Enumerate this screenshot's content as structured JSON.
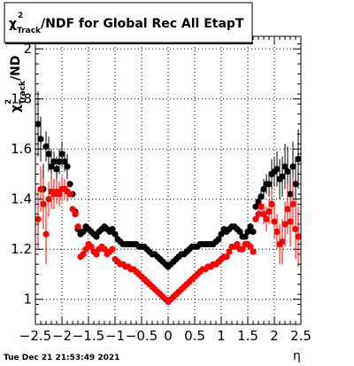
{
  "title": {
    "chi": "χ",
    "sup": "2",
    "sub": "Track",
    "rest": "/NDF for Global Rec All EtapT"
  },
  "ylabel": {
    "chi": "χ",
    "sup": "2",
    "sub": "Track",
    "rest": "/ND"
  },
  "xlabel": "η",
  "timestamp": "Tue Dec 21 21:53:49 2021",
  "chart_data": {
    "type": "scatter",
    "xlim": [
      -2.5,
      2.5
    ],
    "ylim": [
      0.9,
      2.05
    ],
    "xticks": [
      -2.5,
      -2,
      -1.5,
      -1,
      -0.5,
      0,
      0.5,
      1,
      1.5,
      2,
      2.5
    ],
    "xtick_labels": [
      "−2.5",
      "−2",
      "−1.5",
      "−1",
      "−0.5",
      "0",
      "0.5",
      "1",
      "1.5",
      "2",
      "2.5"
    ],
    "yticks": [
      1,
      1.2,
      1.4,
      1.6,
      1.8,
      2
    ],
    "ytick_labels": [
      "1",
      "1.2",
      "1.4",
      "1.6",
      "1.8",
      "2"
    ],
    "grid": true,
    "series": [
      {
        "color": "#000000",
        "x": [
          -2.45,
          -2.4,
          -2.35,
          -2.3,
          -2.25,
          -2.2,
          -2.15,
          -2.1,
          -2.05,
          -2.0,
          -1.95,
          -1.9,
          -1.85,
          -1.8,
          -1.75,
          -1.7,
          -1.65,
          -1.6,
          -1.55,
          -1.5,
          -1.45,
          -1.4,
          -1.35,
          -1.3,
          -1.25,
          -1.2,
          -1.15,
          -1.1,
          -1.05,
          -1.0,
          -0.95,
          -0.9,
          -0.85,
          -0.8,
          -0.75,
          -0.7,
          -0.65,
          -0.6,
          -0.55,
          -0.5,
          -0.45,
          -0.4,
          -0.35,
          -0.3,
          -0.25,
          -0.2,
          -0.15,
          -0.1,
          -0.05,
          0.0,
          0.05,
          0.1,
          0.15,
          0.2,
          0.25,
          0.3,
          0.35,
          0.4,
          0.45,
          0.5,
          0.55,
          0.6,
          0.65,
          0.7,
          0.75,
          0.8,
          0.85,
          0.9,
          0.95,
          1.0,
          1.05,
          1.1,
          1.15,
          1.2,
          1.25,
          1.3,
          1.35,
          1.4,
          1.45,
          1.5,
          1.55,
          1.6,
          1.65,
          1.7,
          1.75,
          1.8,
          1.85,
          1.9,
          1.95,
          2.0,
          2.05,
          2.1,
          2.15,
          2.2,
          2.25,
          2.3,
          2.35,
          2.4,
          2.45
        ],
        "y": [
          1.7,
          1.64,
          1.44,
          1.61,
          1.58,
          1.53,
          1.55,
          1.52,
          1.55,
          1.58,
          1.55,
          1.53,
          1.46,
          1.42,
          1.35,
          1.28,
          1.26,
          1.27,
          1.29,
          1.28,
          1.27,
          1.26,
          1.25,
          1.27,
          1.28,
          1.29,
          1.28,
          1.27,
          1.28,
          1.26,
          1.24,
          1.23,
          1.22,
          1.22,
          1.22,
          1.22,
          1.22,
          1.22,
          1.21,
          1.21,
          1.21,
          1.2,
          1.19,
          1.18,
          1.18,
          1.17,
          1.16,
          1.15,
          1.14,
          1.13,
          1.14,
          1.15,
          1.16,
          1.17,
          1.18,
          1.18,
          1.19,
          1.2,
          1.21,
          1.21,
          1.21,
          1.22,
          1.22,
          1.22,
          1.22,
          1.22,
          1.22,
          1.23,
          1.24,
          1.26,
          1.28,
          1.27,
          1.28,
          1.29,
          1.29,
          1.28,
          1.27,
          1.25,
          1.25,
          1.27,
          1.29,
          1.27,
          1.37,
          1.39,
          1.41,
          1.44,
          1.46,
          1.46,
          1.5,
          1.51,
          1.52,
          1.48,
          1.49,
          1.53,
          1.51,
          1.42,
          1.53,
          1.46,
          1.56
        ],
        "yerr": [
          0.13,
          0.09,
          0.1,
          0.06,
          0.07,
          0.07,
          0.04,
          0.05,
          0.05,
          0.05,
          0.04,
          0.05,
          0.01,
          0.01,
          0.01,
          0.01,
          0.01,
          0.01,
          0.01,
          0.01,
          0.01,
          0.01,
          0.01,
          0.01,
          0.01,
          0.01,
          0.01,
          0.01,
          0.01,
          0.01,
          0.01,
          0.01,
          0.01,
          0.01,
          0.01,
          0.01,
          0.01,
          0.01,
          0.01,
          0.01,
          0.01,
          0.01,
          0.01,
          0.01,
          0.01,
          0.01,
          0.01,
          0.01,
          0.01,
          0.01,
          0.01,
          0.01,
          0.01,
          0.01,
          0.01,
          0.01,
          0.01,
          0.01,
          0.01,
          0.01,
          0.01,
          0.01,
          0.01,
          0.01,
          0.01,
          0.01,
          0.01,
          0.01,
          0.01,
          0.01,
          0.01,
          0.01,
          0.01,
          0.01,
          0.01,
          0.01,
          0.01,
          0.01,
          0.01,
          0.01,
          0.01,
          0.01,
          0.01,
          0.02,
          0.03,
          0.04,
          0.04,
          0.05,
          0.06,
          0.06,
          0.07,
          0.08,
          0.08,
          0.09,
          0.1,
          0.1,
          0.1,
          0.11,
          0.12
        ]
      },
      {
        "color": "#ff0000",
        "x": [
          -2.45,
          -2.4,
          -2.35,
          -2.3,
          -2.25,
          -2.2,
          -2.15,
          -2.1,
          -2.05,
          -2.0,
          -1.95,
          -1.9,
          -1.85,
          -1.8,
          -1.75,
          -1.7,
          -1.65,
          -1.6,
          -1.55,
          -1.5,
          -1.45,
          -1.4,
          -1.35,
          -1.3,
          -1.25,
          -1.2,
          -1.15,
          -1.1,
          -1.05,
          -1.0,
          -0.95,
          -0.9,
          -0.85,
          -0.8,
          -0.75,
          -0.7,
          -0.65,
          -0.6,
          -0.55,
          -0.5,
          -0.45,
          -0.4,
          -0.35,
          -0.3,
          -0.25,
          -0.2,
          -0.15,
          -0.1,
          -0.05,
          0.0,
          0.05,
          0.1,
          0.15,
          0.2,
          0.25,
          0.3,
          0.35,
          0.4,
          0.45,
          0.5,
          0.55,
          0.6,
          0.65,
          0.7,
          0.75,
          0.8,
          0.85,
          0.9,
          0.95,
          1.0,
          1.05,
          1.1,
          1.15,
          1.2,
          1.25,
          1.3,
          1.35,
          1.4,
          1.45,
          1.5,
          1.55,
          1.6,
          1.65,
          1.7,
          1.75,
          1.8,
          1.85,
          1.9,
          1.95,
          2.0,
          2.05,
          2.1,
          2.15,
          2.2,
          2.25,
          2.3,
          2.35,
          2.4,
          2.45
        ],
        "y": [
          1.32,
          1.44,
          1.38,
          1.26,
          1.4,
          1.43,
          1.42,
          1.43,
          1.42,
          1.44,
          1.44,
          1.43,
          1.42,
          1.36,
          1.34,
          1.29,
          1.17,
          1.18,
          1.2,
          1.22,
          1.21,
          1.19,
          1.18,
          1.2,
          1.21,
          1.2,
          1.18,
          1.19,
          1.2,
          1.16,
          1.15,
          1.14,
          1.14,
          1.13,
          1.13,
          1.12,
          1.12,
          1.11,
          1.1,
          1.09,
          1.08,
          1.07,
          1.06,
          1.05,
          1.04,
          1.03,
          1.02,
          1.01,
          1.0,
          0.99,
          1.0,
          1.01,
          1.02,
          1.03,
          1.04,
          1.05,
          1.06,
          1.07,
          1.08,
          1.09,
          1.1,
          1.11,
          1.12,
          1.12,
          1.13,
          1.13,
          1.14,
          1.14,
          1.15,
          1.16,
          1.17,
          1.17,
          1.19,
          1.21,
          1.21,
          1.22,
          1.2,
          1.2,
          1.22,
          1.22,
          1.21,
          1.19,
          1.32,
          1.34,
          1.37,
          1.34,
          1.32,
          1.35,
          1.38,
          1.31,
          1.27,
          1.22,
          1.23,
          1.3,
          1.36,
          1.31,
          1.38,
          1.28,
          1.25
        ],
        "yerr": [
          0.12,
          0.09,
          0.1,
          0.12,
          0.07,
          0.07,
          0.06,
          0.05,
          0.05,
          0.05,
          0.04,
          0.04,
          0.01,
          0.01,
          0.01,
          0.01,
          0.01,
          0.01,
          0.01,
          0.01,
          0.01,
          0.01,
          0.01,
          0.01,
          0.01,
          0.01,
          0.01,
          0.01,
          0.01,
          0.01,
          0.01,
          0.01,
          0.01,
          0.01,
          0.01,
          0.01,
          0.01,
          0.01,
          0.01,
          0.01,
          0.01,
          0.01,
          0.01,
          0.01,
          0.01,
          0.01,
          0.01,
          0.01,
          0.01,
          0.01,
          0.01,
          0.01,
          0.01,
          0.01,
          0.01,
          0.01,
          0.01,
          0.01,
          0.01,
          0.01,
          0.01,
          0.01,
          0.01,
          0.01,
          0.01,
          0.01,
          0.01,
          0.01,
          0.01,
          0.01,
          0.01,
          0.01,
          0.01,
          0.01,
          0.01,
          0.01,
          0.01,
          0.01,
          0.01,
          0.01,
          0.01,
          0.01,
          0.01,
          0.02,
          0.03,
          0.04,
          0.05,
          0.05,
          0.06,
          0.07,
          0.07,
          0.08,
          0.09,
          0.09,
          0.1,
          0.1,
          0.11,
          0.12,
          0.12
        ]
      }
    ]
  }
}
